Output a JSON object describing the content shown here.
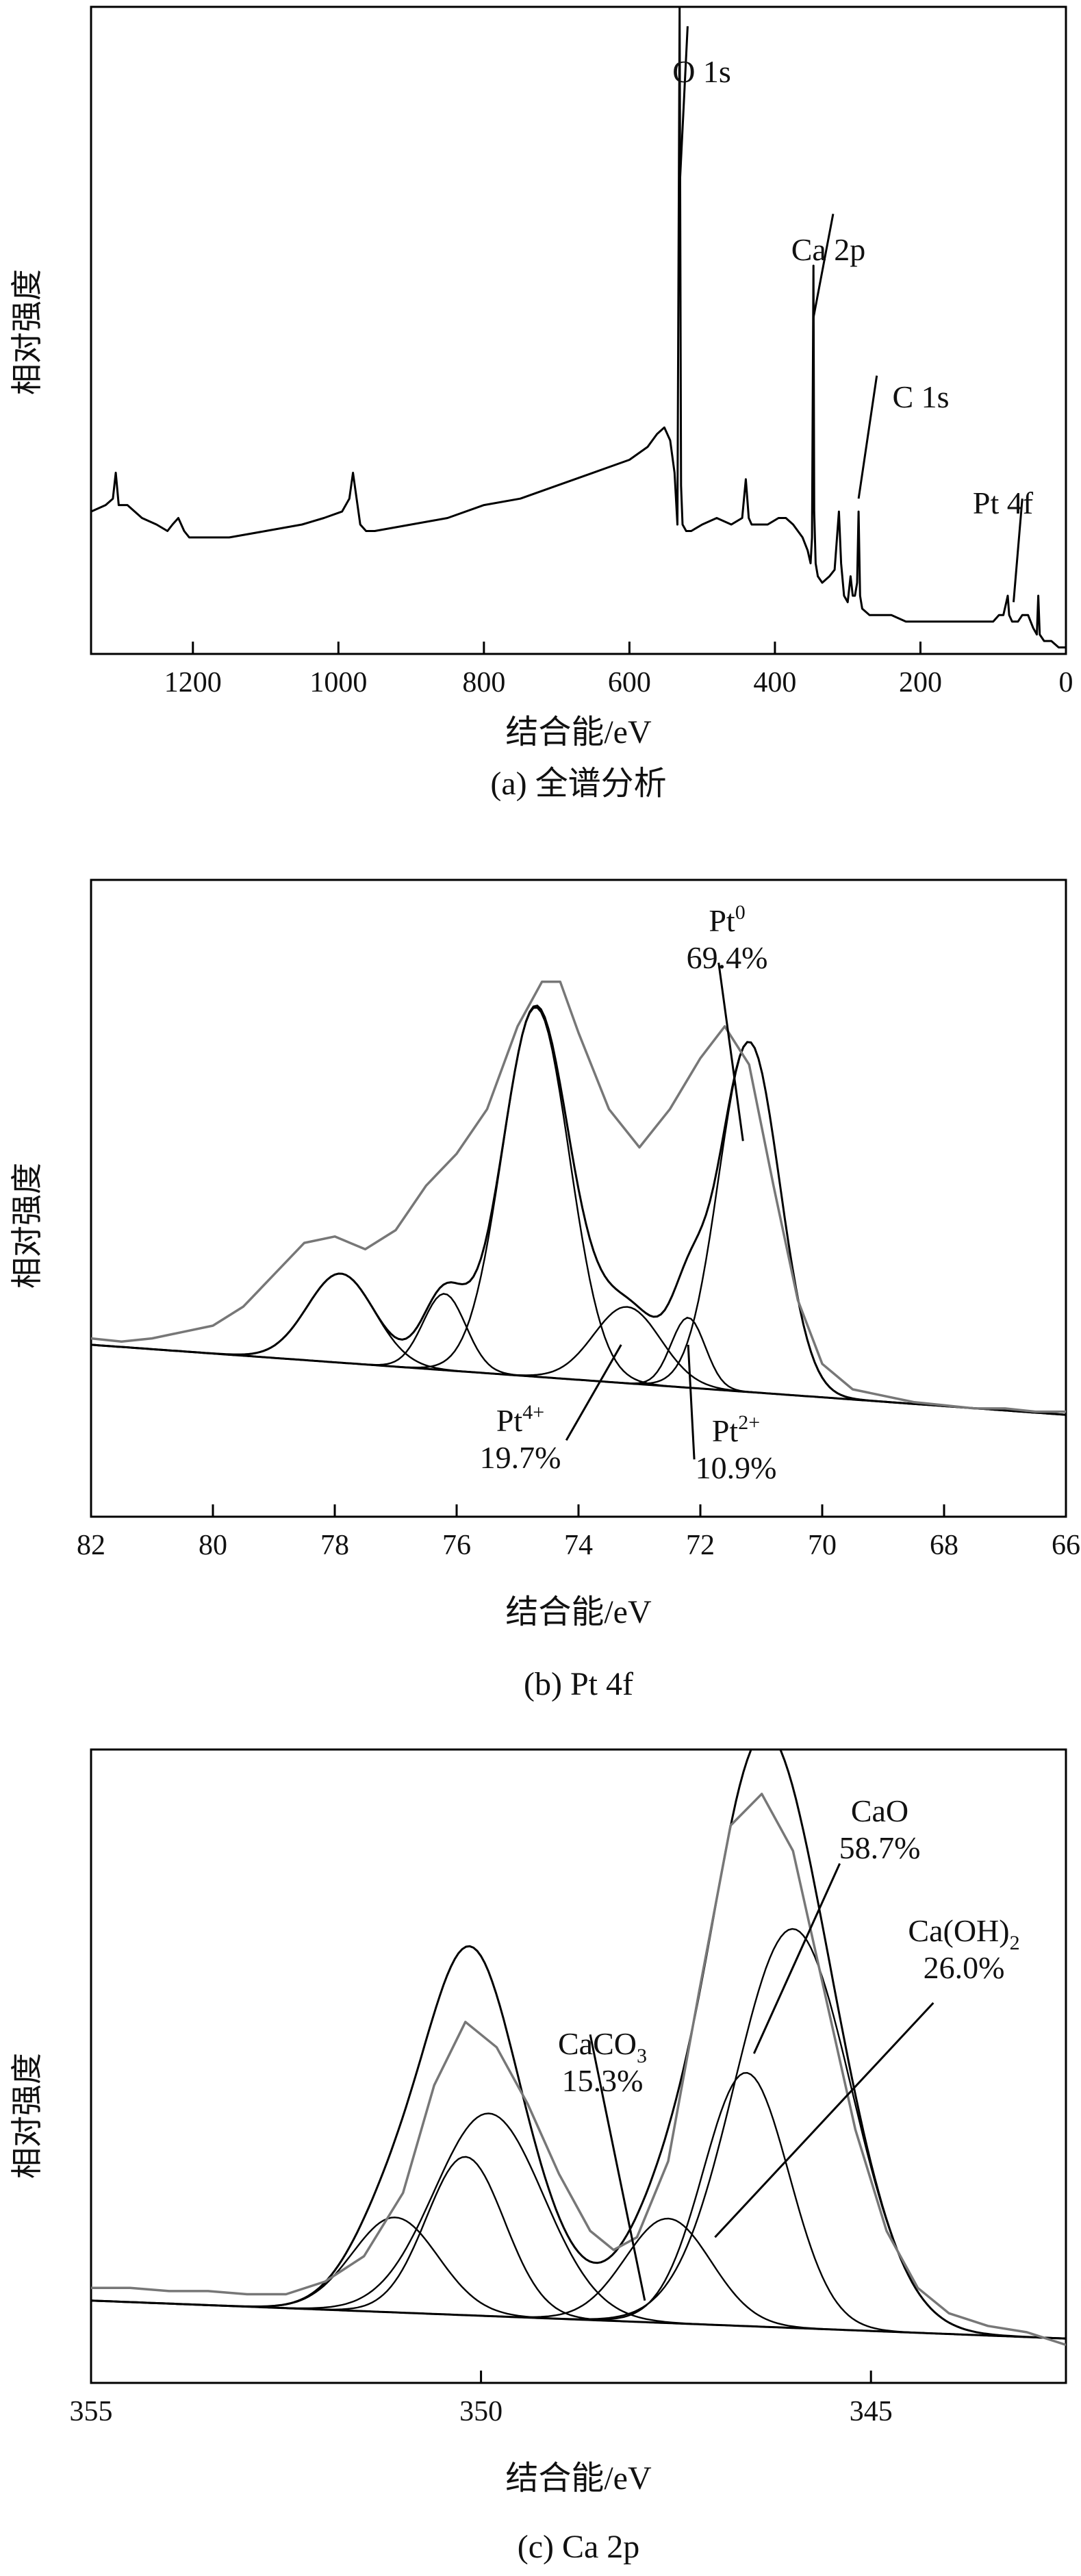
{
  "chart_data": [
    {
      "type": "line",
      "caption": "(a) 全谱分析",
      "xlabel": "结合能/eV",
      "ylabel": "相对强度",
      "xlim": [
        1340,
        0
      ],
      "xticks": [
        1200,
        1000,
        800,
        600,
        400,
        200,
        0
      ],
      "ylim": [
        0,
        100
      ],
      "grid": false,
      "annotations": [
        {
          "label": "O 1s",
          "x": 531,
          "y": 72,
          "tx": 520,
          "ty": 97
        },
        {
          "label": "Ca 2p",
          "x": 347,
          "y": 52,
          "tx": 320,
          "ty": 68
        },
        {
          "label": "C 1s",
          "x": 285,
          "y": 24,
          "tx": 260,
          "ty": 43
        },
        {
          "label": "Pt 4f",
          "x": 72,
          "y": 8,
          "tx": 60,
          "ty": 24
        }
      ],
      "series": [
        {
          "x": [
            1340,
            1320,
            1310,
            1306,
            1302,
            1290,
            1270,
            1250,
            1235,
            1228,
            1220,
            1212,
            1205,
            1195,
            1185,
            1150,
            1100,
            1050,
            1020,
            995,
            985,
            980,
            975,
            970,
            962,
            950,
            900,
            850,
            800,
            750,
            700,
            650,
            600,
            575,
            562,
            552,
            544,
            538,
            534,
            531,
            529,
            527,
            522,
            515,
            500,
            480,
            460,
            445,
            440,
            436,
            432,
            425,
            410,
            395,
            385,
            375,
            362,
            355,
            351,
            349,
            347,
            346,
            344,
            341,
            335,
            325,
            318,
            312,
            309,
            305,
            300,
            296,
            293,
            290,
            287,
            285,
            283,
            280,
            270,
            260,
            240,
            220,
            200,
            180,
            150,
            120,
            100,
            92,
            86,
            82,
            80,
            78,
            74,
            70,
            66,
            60,
            52,
            45,
            40,
            38,
            36,
            30,
            20,
            10,
            0
          ],
          "y": [
            22,
            23,
            24,
            28,
            23,
            23,
            21,
            20,
            19,
            20,
            21,
            19,
            18,
            18,
            18,
            18,
            19,
            20,
            21,
            22,
            24,
            28,
            24,
            20,
            19,
            19,
            20,
            21,
            23,
            24,
            26,
            28,
            30,
            32,
            34,
            35,
            33,
            28,
            20,
            100,
            26,
            20,
            19,
            19,
            20,
            21,
            20,
            21,
            27,
            21,
            20,
            20,
            20,
            21,
            21,
            20,
            18,
            16,
            14,
            18,
            60,
            22,
            14,
            12,
            11,
            12,
            13,
            22,
            14,
            9,
            8,
            12,
            9,
            9,
            11,
            22,
            9,
            7,
            6,
            6,
            6,
            5,
            5,
            5,
            5,
            5,
            5,
            6,
            6,
            8,
            9,
            6,
            5,
            5,
            5,
            6,
            6,
            4,
            3,
            9,
            3,
            2,
            2,
            1,
            1
          ]
        }
      ]
    },
    {
      "type": "line",
      "caption": "(b) Pt 4f",
      "xlabel": "结合能/eV",
      "ylabel": "相对强度",
      "xlim": [
        82,
        66
      ],
      "xticks": [
        82,
        80,
        78,
        76,
        74,
        72,
        70,
        68,
        66
      ],
      "ylim": [
        0,
        100
      ],
      "grid": false,
      "annotations": [
        {
          "label": "Pt",
          "sup": "0",
          "pct": "69.4%",
          "x": 71.3,
          "y": 59,
          "tx": 71.7,
          "ty": 87
        },
        {
          "label": "Pt",
          "sup": "4+",
          "pct": "19.7%",
          "x": 73.3,
          "y": 27,
          "tx": 74.2,
          "ty": 12
        },
        {
          "label": "Pt",
          "sup": "2+",
          "pct": "10.9%",
          "x": 72.2,
          "y": 27,
          "tx": 72.1,
          "ty": 9
        }
      ],
      "series": [
        {
          "role": "raw",
          "x": [
            82,
            81.5,
            81,
            80.5,
            80,
            79.5,
            79,
            78.5,
            78,
            77.5,
            77,
            76.5,
            76,
            75.5,
            75,
            74.6,
            74.3,
            74,
            73.5,
            73,
            72.5,
            72,
            71.6,
            71.2,
            70.8,
            70.4,
            70,
            69.5,
            69,
            68.5,
            68,
            67.5,
            67,
            66.5,
            66
          ],
          "y": [
            28,
            27.5,
            28,
            29,
            30,
            33,
            38,
            43,
            44,
            42,
            45,
            52,
            57,
            64,
            77,
            84,
            84,
            76,
            64,
            58,
            64,
            72,
            77,
            71,
            52,
            34,
            24,
            20,
            19,
            18,
            17.5,
            17,
            17,
            16.5,
            16.5
          ]
        }
      ],
      "background": {
        "start": 27.0,
        "end": 16.0
      },
      "peaks": [
        {
          "center": 77.9,
          "amp": 14.0,
          "sigma": 0.55
        },
        {
          "center": 76.2,
          "amp": 12.0,
          "sigma": 0.35
        },
        {
          "center": 74.7,
          "amp": 58.0,
          "sigma": 0.55
        },
        {
          "center": 73.2,
          "amp": 12.0,
          "sigma": 0.55
        },
        {
          "center": 72.2,
          "amp": 11.0,
          "sigma": 0.28
        },
        {
          "center": 71.2,
          "amp": 55.0,
          "sigma": 0.5
        }
      ]
    },
    {
      "type": "line",
      "caption": "(c) Ca 2p",
      "xlabel": "结合能/eV",
      "ylabel": "相对强度",
      "xlim": [
        355,
        342.5
      ],
      "xticks": [
        355,
        350,
        345
      ],
      "ylim": [
        0,
        100
      ],
      "grid": false,
      "annotations": [
        {
          "label": "CaO",
          "pct": "58.7%",
          "x": 346.5,
          "y": 52,
          "tx": 345.4,
          "ty": 82
        },
        {
          "label": "Ca(OH)",
          "sub": "2",
          "pct": "26.0%",
          "x": 347.0,
          "y": 23,
          "tx": 344.2,
          "ty": 60
        },
        {
          "label": "CaCO",
          "sub": "3",
          "pct": "15.3%",
          "x": 347.9,
          "y": 13,
          "tx": 348.6,
          "ty": 55
        }
      ],
      "series": [
        {
          "role": "raw",
          "x": [
            355,
            354.5,
            354,
            353.5,
            353,
            352.5,
            352,
            351.5,
            351,
            350.6,
            350.2,
            349.8,
            349.4,
            349,
            348.6,
            348.3,
            348.0,
            347.6,
            347.2,
            346.8,
            346.4,
            346.0,
            345.6,
            345.2,
            344.8,
            344.4,
            344.0,
            343.5,
            343.0,
            342.5
          ],
          "y": [
            15,
            15,
            14.5,
            14.5,
            14,
            14,
            16,
            20,
            30,
            47,
            57,
            53,
            44,
            33,
            24,
            21,
            23,
            35,
            62,
            88,
            93,
            84,
            62,
            40,
            24,
            15,
            11,
            9,
            8,
            6
          ]
        }
      ],
      "background": {
        "start": 13.0,
        "end": 7.0
      },
      "peaks": [
        {
          "center": 351.1,
          "amp": 15.0,
          "sigma": 0.55
        },
        {
          "center": 350.2,
          "amp": 25.0,
          "sigma": 0.5
        },
        {
          "center": 349.9,
          "amp": 32.0,
          "sigma": 0.7
        },
        {
          "center": 347.6,
          "amp": 16.5,
          "sigma": 0.55
        },
        {
          "center": 346.6,
          "amp": 40.0,
          "sigma": 0.55
        },
        {
          "center": 346.0,
          "amp": 63.0,
          "sigma": 0.75
        }
      ]
    }
  ]
}
